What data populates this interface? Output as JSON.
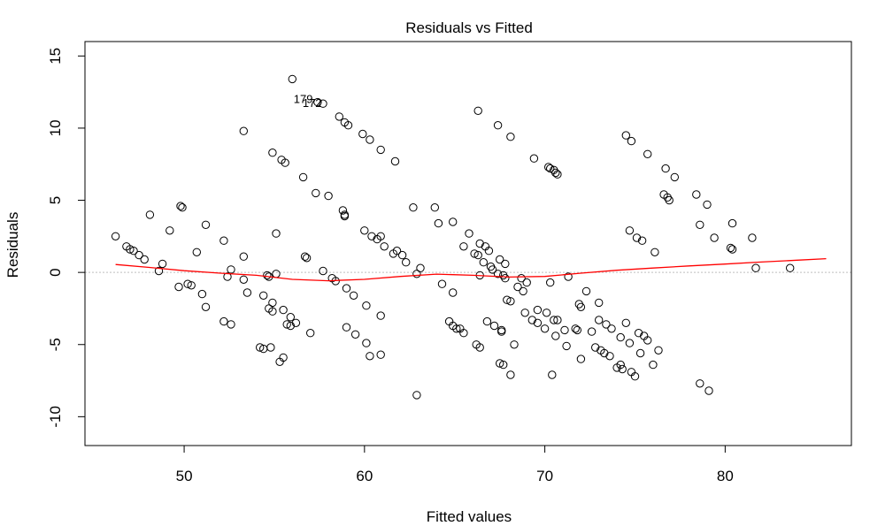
{
  "chart_data": {
    "type": "scatter",
    "title": "Residuals vs Fitted",
    "xlabel": "Fitted values",
    "ylabel": "Residuals",
    "xlim": [
      44.5,
      87
    ],
    "ylim": [
      -12,
      16
    ],
    "x_ticks": [
      50,
      60,
      70,
      80
    ],
    "x_tick_labels": [
      "50",
      "60",
      "70",
      "80"
    ],
    "y_ticks": [
      -10,
      -5,
      0,
      5,
      10,
      15
    ],
    "y_tick_labels": [
      "-10",
      "-5",
      "0",
      "5",
      "10",
      "15"
    ],
    "grid": false,
    "reference_line_y": 0,
    "reference_line_color": "#bfbfbf",
    "point_color": "#000000",
    "smooth_color": "#ff0000",
    "points": [
      [
        46.2,
        2.5
      ],
      [
        46.8,
        1.8
      ],
      [
        47.0,
        1.6
      ],
      [
        47.2,
        1.5
      ],
      [
        47.5,
        1.2
      ],
      [
        47.8,
        0.9
      ],
      [
        48.1,
        4.0
      ],
      [
        48.6,
        0.1
      ],
      [
        48.8,
        0.6
      ],
      [
        49.2,
        2.9
      ],
      [
        49.8,
        4.6
      ],
      [
        49.9,
        4.5
      ],
      [
        49.7,
        -1.0
      ],
      [
        50.2,
        -0.8
      ],
      [
        50.4,
        -0.9
      ],
      [
        50.7,
        1.4
      ],
      [
        51.0,
        -1.5
      ],
      [
        51.2,
        3.3
      ],
      [
        51.2,
        -2.4
      ],
      [
        52.2,
        2.2
      ],
      [
        52.4,
        -0.3
      ],
      [
        52.6,
        0.2
      ],
      [
        52.2,
        -3.4
      ],
      [
        52.6,
        -3.6
      ],
      [
        53.3,
        9.8
      ],
      [
        53.3,
        1.1
      ],
      [
        53.3,
        -0.5
      ],
      [
        53.5,
        -1.4
      ],
      [
        54.2,
        -5.2
      ],
      [
        54.4,
        -5.3
      ],
      [
        54.4,
        -1.6
      ],
      [
        54.6,
        -0.2
      ],
      [
        54.7,
        -0.3
      ],
      [
        54.7,
        -2.5
      ],
      [
        54.9,
        -2.7
      ],
      [
        54.9,
        -2.1
      ],
      [
        54.8,
        -5.2
      ],
      [
        54.9,
        8.3
      ],
      [
        55.1,
        2.7
      ],
      [
        55.1,
        -0.1
      ],
      [
        55.4,
        7.8
      ],
      [
        55.5,
        -2.6
      ],
      [
        55.3,
        -6.2
      ],
      [
        55.5,
        -5.9
      ],
      [
        55.6,
        7.6
      ],
      [
        55.7,
        -3.6
      ],
      [
        55.9,
        -3.1
      ],
      [
        55.9,
        -3.7
      ],
      [
        56.0,
        13.4
      ],
      [
        56.2,
        -3.5
      ],
      [
        56.6,
        6.6
      ],
      [
        56.7,
        1.1
      ],
      [
        56.8,
        1.0
      ],
      [
        57.0,
        -4.2
      ],
      [
        57.3,
        5.5
      ],
      [
        57.4,
        11.8
      ],
      [
        57.7,
        11.7
      ],
      [
        57.7,
        0.1
      ],
      [
        58.0,
        5.3
      ],
      [
        58.2,
        -0.4
      ],
      [
        58.4,
        -0.6
      ],
      [
        58.6,
        10.8
      ],
      [
        58.8,
        4.3
      ],
      [
        58.9,
        3.9
      ],
      [
        58.9,
        10.4
      ],
      [
        58.9,
        4.0
      ],
      [
        59.0,
        -1.1
      ],
      [
        59.0,
        -3.8
      ],
      [
        59.1,
        10.2
      ],
      [
        59.5,
        -4.3
      ],
      [
        59.4,
        -1.6
      ],
      [
        59.9,
        9.6
      ],
      [
        60.0,
        2.9
      ],
      [
        60.1,
        -2.3
      ],
      [
        60.1,
        -4.9
      ],
      [
        60.3,
        9.2
      ],
      [
        60.4,
        2.5
      ],
      [
        60.3,
        -5.8
      ],
      [
        60.7,
        2.3
      ],
      [
        60.9,
        8.5
      ],
      [
        60.9,
        2.5
      ],
      [
        60.9,
        -3.0
      ],
      [
        60.9,
        -5.7
      ],
      [
        61.1,
        1.8
      ],
      [
        61.6,
        1.3
      ],
      [
        61.7,
        7.7
      ],
      [
        61.8,
        1.5
      ],
      [
        62.1,
        1.2
      ],
      [
        62.3,
        0.7
      ],
      [
        62.7,
        4.5
      ],
      [
        62.9,
        -0.1
      ],
      [
        63.1,
        0.3
      ],
      [
        62.9,
        -8.5
      ],
      [
        63.9,
        4.5
      ],
      [
        64.1,
        3.4
      ],
      [
        64.3,
        -0.8
      ],
      [
        64.7,
        -3.4
      ],
      [
        64.9,
        3.5
      ],
      [
        64.9,
        -1.4
      ],
      [
        64.9,
        -3.7
      ],
      [
        65.1,
        -3.9
      ],
      [
        65.3,
        -3.9
      ],
      [
        65.5,
        -4.2
      ],
      [
        65.5,
        1.8
      ],
      [
        65.8,
        2.7
      ],
      [
        66.1,
        1.3
      ],
      [
        66.2,
        -5.0
      ],
      [
        66.3,
        11.2
      ],
      [
        66.3,
        1.2
      ],
      [
        66.4,
        2.0
      ],
      [
        66.4,
        -0.2
      ],
      [
        66.4,
        -5.2
      ],
      [
        66.6,
        0.7
      ],
      [
        66.7,
        1.8
      ],
      [
        66.8,
        -3.4
      ],
      [
        66.9,
        1.5
      ],
      [
        67.0,
        0.4
      ],
      [
        67.1,
        0.2
      ],
      [
        67.2,
        -3.7
      ],
      [
        67.4,
        10.2
      ],
      [
        67.4,
        -0.1
      ],
      [
        67.5,
        -6.3
      ],
      [
        67.5,
        0.9
      ],
      [
        67.6,
        -4.0
      ],
      [
        67.6,
        -4.1
      ],
      [
        67.7,
        -0.2
      ],
      [
        67.7,
        -6.4
      ],
      [
        67.8,
        0.6
      ],
      [
        67.8,
        -0.4
      ],
      [
        67.9,
        -1.9
      ],
      [
        68.1,
        9.4
      ],
      [
        68.1,
        -2.0
      ],
      [
        68.1,
        -7.1
      ],
      [
        68.3,
        -5.0
      ],
      [
        68.5,
        -1.0
      ],
      [
        68.7,
        -0.4
      ],
      [
        68.8,
        -1.3
      ],
      [
        68.9,
        -2.8
      ],
      [
        69.0,
        -0.7
      ],
      [
        69.4,
        7.9
      ],
      [
        69.3,
        -3.3
      ],
      [
        69.6,
        -3.5
      ],
      [
        69.6,
        -2.6
      ],
      [
        70.0,
        -3.9
      ],
      [
        70.1,
        -2.8
      ],
      [
        70.2,
        7.3
      ],
      [
        70.3,
        7.2
      ],
      [
        70.3,
        -0.7
      ],
      [
        70.4,
        -7.1
      ],
      [
        70.5,
        7.1
      ],
      [
        70.5,
        -3.3
      ],
      [
        70.6,
        6.9
      ],
      [
        70.7,
        6.8
      ],
      [
        70.6,
        -4.4
      ],
      [
        70.7,
        -3.3
      ],
      [
        71.1,
        -4.0
      ],
      [
        71.2,
        -5.1
      ],
      [
        71.3,
        -0.3
      ],
      [
        71.7,
        -3.9
      ],
      [
        71.8,
        -4.0
      ],
      [
        71.9,
        -2.2
      ],
      [
        72.0,
        -2.4
      ],
      [
        72.0,
        -6.0
      ],
      [
        72.3,
        -1.3
      ],
      [
        72.6,
        -4.1
      ],
      [
        72.8,
        -5.2
      ],
      [
        73.0,
        -3.3
      ],
      [
        73.0,
        -2.1
      ],
      [
        73.1,
        -5.4
      ],
      [
        73.3,
        -5.6
      ],
      [
        73.4,
        -3.6
      ],
      [
        73.6,
        -5.8
      ],
      [
        73.7,
        -3.9
      ],
      [
        74.0,
        -6.6
      ],
      [
        74.2,
        -6.4
      ],
      [
        74.2,
        -4.5
      ],
      [
        74.5,
        9.5
      ],
      [
        74.3,
        -6.7
      ],
      [
        74.5,
        -3.5
      ],
      [
        74.7,
        2.9
      ],
      [
        74.7,
        -4.9
      ],
      [
        74.8,
        9.1
      ],
      [
        74.8,
        -6.9
      ],
      [
        75.0,
        -7.2
      ],
      [
        75.1,
        2.4
      ],
      [
        75.2,
        -4.2
      ],
      [
        75.3,
        -5.6
      ],
      [
        75.4,
        2.2
      ],
      [
        75.5,
        -4.4
      ],
      [
        75.7,
        8.2
      ],
      [
        75.7,
        -4.7
      ],
      [
        76.0,
        -6.4
      ],
      [
        76.1,
        1.4
      ],
      [
        76.3,
        -5.4
      ],
      [
        76.6,
        5.4
      ],
      [
        76.7,
        7.2
      ],
      [
        76.8,
        5.2
      ],
      [
        76.9,
        5.0
      ],
      [
        77.2,
        6.6
      ],
      [
        78.4,
        5.4
      ],
      [
        78.6,
        3.3
      ],
      [
        78.6,
        -7.7
      ],
      [
        79.0,
        4.7
      ],
      [
        79.1,
        -8.2
      ],
      [
        79.4,
        2.4
      ],
      [
        80.3,
        1.7
      ],
      [
        80.4,
        3.4
      ],
      [
        80.4,
        1.6
      ],
      [
        81.5,
        2.4
      ],
      [
        81.7,
        0.3
      ],
      [
        83.6,
        0.3
      ]
    ],
    "labeled_points": [
      {
        "label": "179",
        "x": 56.6,
        "y": 12.0
      },
      {
        "label": "172",
        "x": 57.1,
        "y": 11.7
      }
    ],
    "smooth_line": {
      "x": [
        46.2,
        48,
        50,
        52,
        54,
        56,
        58,
        60,
        62,
        64,
        66,
        68,
        70,
        72,
        74,
        76,
        78,
        80,
        82,
        84,
        85.6
      ],
      "y": [
        0.55,
        0.35,
        0.12,
        -0.05,
        -0.2,
        -0.48,
        -0.58,
        -0.48,
        -0.28,
        -0.12,
        -0.2,
        -0.32,
        -0.28,
        -0.05,
        0.15,
        0.3,
        0.45,
        0.58,
        0.72,
        0.85,
        0.95
      ]
    }
  }
}
